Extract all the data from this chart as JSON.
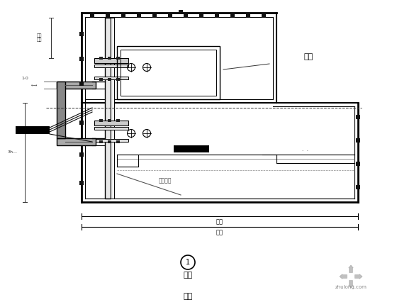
{
  "bg_color": "#ffffff",
  "lc": "#000000",
  "label_室内": "室内",
  "label_室外": "室外",
  "label_num": "1",
  "label_底部1": "室外",
  "label_底部2": "室内",
  "dim_text": "粗料",
  "watermark": "zhulong.com",
  "annotation": "铝板幕墙"
}
